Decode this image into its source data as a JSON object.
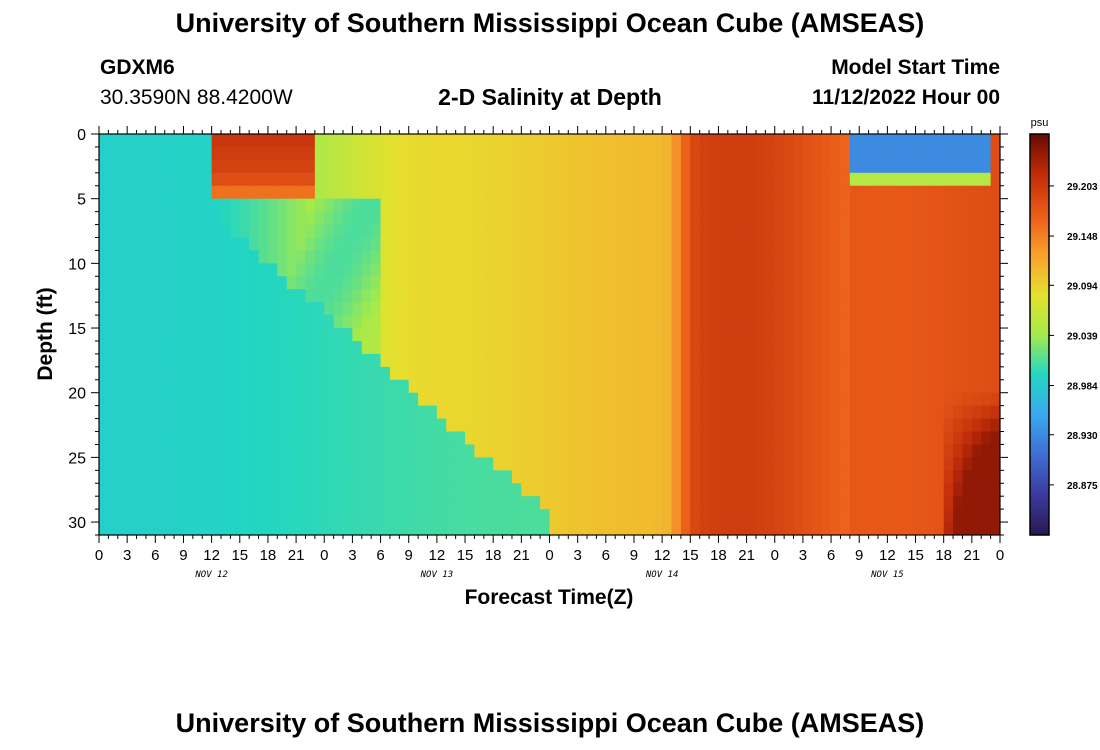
{
  "header": {
    "title": "University of Southern Mississippi Ocean Cube (AMSEAS)",
    "station_id": "GDXM6",
    "coords": "30.3590N  88.4200W",
    "subtitle": "2-D Salinity at Depth",
    "model_start_label": "Model Start Time",
    "model_start_value": "11/12/2022 Hour 00"
  },
  "footer": {
    "repeat_title": "University of Southern Mississippi Ocean Cube (AMSEAS)"
  },
  "colors": {
    "colormap": [
      "#2a1850",
      "#3a3a9e",
      "#3e6ed4",
      "#3aa8ee",
      "#22d6c2",
      "#a6ea4a",
      "#e6e02e",
      "#f9a02e",
      "#ea5a18",
      "#c02c0a",
      "#6a0a00"
    ]
  },
  "chart_data": {
    "type": "heatmap",
    "title": "2-D Salinity at Depth",
    "xlabel": "Forecast Time(Z)",
    "ylabel": "Depth (ft)",
    "xlim": [
      0,
      96
    ],
    "ylim": [
      31,
      0
    ],
    "x_tick_step_hours": 3,
    "x_tick_labels": [
      "0",
      "3",
      "6",
      "9",
      "12",
      "15",
      "18",
      "21",
      "0",
      "3",
      "6",
      "9",
      "12",
      "15",
      "18",
      "21",
      "0",
      "3",
      "6",
      "9",
      "12",
      "15",
      "18",
      "21",
      "0",
      "3",
      "6",
      "9",
      "12",
      "15",
      "18",
      "21",
      "0"
    ],
    "y_ticks": [
      0,
      5,
      10,
      15,
      20,
      25,
      30
    ],
    "y_tick_labels": [
      "0",
      "5",
      "10",
      "15",
      "20",
      "25",
      "30"
    ],
    "date_labels": [
      {
        "label": "NOV 12",
        "hour": 12
      },
      {
        "label": "NOV 13",
        "hour": 36
      },
      {
        "label": "NOV 14",
        "hour": 60
      },
      {
        "label": "NOV 15",
        "hour": 84
      }
    ],
    "colorbar": {
      "unit": "psu",
      "min": 28.82,
      "max": 29.26,
      "ticks": [
        29.203,
        29.148,
        29.094,
        29.039,
        28.984,
        28.93,
        28.875
      ],
      "tick_labels": [
        "29.203",
        "29.148",
        "29.094",
        "29.039",
        "28.984",
        "28.930",
        "28.875"
      ]
    },
    "depth_levels_ft": [
      0,
      1,
      2,
      3,
      4,
      5,
      6,
      7,
      8,
      9,
      10,
      11,
      12,
      13,
      14,
      15,
      16,
      17,
      18,
      19,
      20,
      21,
      22,
      23,
      24,
      25,
      26,
      27,
      28,
      29,
      30
    ],
    "hour_step": 1,
    "salinity_description": "Estimated field: low salinity (~28.99 psu) at hours 0-9 full depth; high surface lens hours 11-23 (~29.20); fresh bottom wedge hours 0-47; mid values ~29.09 hours 36-60; high 29.15-29.21 hours 62-96 with fresh surface pool (~28.93) hours 80-95 above 5 ft and saltiest bottom water near hour 96."
  }
}
